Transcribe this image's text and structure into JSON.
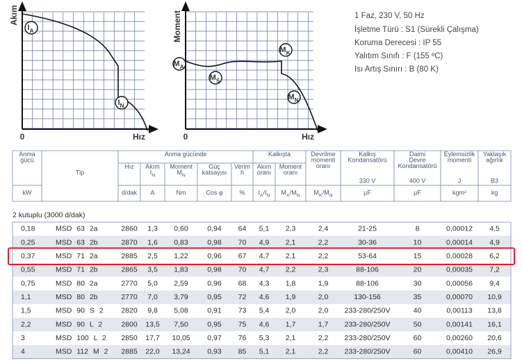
{
  "diagrams": [
    {
      "y_label": "Akım",
      "origin": "0",
      "x_label": "Hız",
      "markers": [
        [
          "I",
          "A"
        ],
        [
          "I",
          "N"
        ]
      ]
    },
    {
      "y_label": "Moment",
      "origin": "0",
      "x_label": "Hız",
      "markers": [
        [
          "M",
          "A"
        ],
        [
          "M",
          "S"
        ],
        [
          "M",
          "K"
        ],
        [
          "M",
          "N"
        ]
      ]
    }
  ],
  "specs": [
    "1 Faz, 230 V, 50 Hz",
    "İşletme Türü : S1 (Sürekli Çalışma)",
    "Koruma Derecesi : IP 55",
    "Yalıtım Sınıfı : F (155 ºC)",
    "Isı Artış Sınırı : B (80 K)"
  ],
  "table": {
    "header": {
      "cells": [
        {
          "lines": [
            [
              "Anma"
            ],
            [
              "gücü"
            ]
          ]
        },
        {
          "lines": [
            [
              "Tip"
            ]
          ]
        },
        {
          "lines": [
            [
              "Anma gücünde"
            ]
          ]
        },
        {
          "lines": [
            [
              "Hız"
            ]
          ]
        },
        {
          "lines": [
            [
              "Akım"
            ],
            [
              "I",
              "N"
            ]
          ]
        },
        {
          "lines": [
            [
              "Moment"
            ],
            [
              "M",
              "N"
            ]
          ]
        },
        {
          "lines": [
            [
              "Güç"
            ],
            [
              "katsayısı"
            ]
          ]
        },
        {
          "lines": [
            [
              "Verim"
            ],
            [
              "h"
            ]
          ]
        },
        {
          "lines": [
            [
              "Kalkışta"
            ]
          ]
        },
        {
          "lines": [
            [
              "Akım"
            ],
            [
              "oranı"
            ]
          ]
        },
        {
          "lines": [
            [
              "Moment"
            ],
            [
              "oranı"
            ]
          ]
        },
        {
          "lines": [
            [
              "Devrilme"
            ],
            [
              "momenti"
            ],
            [
              "oranı"
            ]
          ]
        },
        {
          "lines": [
            [
              "Kalkış"
            ],
            [
              "Kondansatörü"
            ]
          ],
          "note": "330 V"
        },
        {
          "lines": [
            [
              "Daimi"
            ],
            [
              "Devre"
            ],
            [
              "Kondansatörü"
            ]
          ],
          "note": "400 V"
        },
        {
          "lines": [
            [
              "Eylemsizlik"
            ],
            [
              "momenti"
            ]
          ],
          "note": "J"
        },
        {
          "lines": [
            [
              "Yaklaşık"
            ],
            [
              "ağırlık"
            ]
          ],
          "note": "B3"
        }
      ],
      "units": [
        [
          "kW"
        ],
        [
          "d/dak"
        ],
        [
          "A"
        ],
        [
          "Nm"
        ],
        [
          "Cos φ"
        ],
        [
          "%"
        ],
        [
          "I",
          "A",
          "/I",
          "N"
        ],
        [
          "M",
          "A",
          "/M",
          "N"
        ],
        [
          "M",
          "K",
          "/M",
          "N"
        ],
        [
          "µF"
        ],
        [
          "µF"
        ],
        [
          "kgm²"
        ],
        [
          "kg"
        ]
      ]
    },
    "section": "2 kutuplu (3000 d/dak)",
    "rows": [
      [
        "0,18",
        "MSD 63 2a",
        "2860",
        "1,3",
        "0,60",
        "0,94",
        "64",
        "5,1",
        "2,3",
        "2,4",
        "21-25",
        "8",
        "0,00012",
        "4,5"
      ],
      [
        "0,25",
        "MSD 63 2b",
        "2870",
        "1,6",
        "0,83",
        "0,98",
        "70",
        "4,9",
        "2,1",
        "2,2",
        "30-36",
        "10",
        "0,00014",
        "4,9"
      ],
      [
        "0,37",
        "MSD 71 2a",
        "2885",
        "2,5",
        "1,22",
        "0,96",
        "67",
        "4,7",
        "2,1",
        "2,2",
        "53-64",
        "15",
        "0,00028",
        "6,2"
      ],
      [
        "0,55",
        "MSD 71 2b",
        "2865",
        "3,5",
        "1,83",
        "0,98",
        "70",
        "4,7",
        "2,2",
        "2,3",
        "88-106",
        "20",
        "0,00035",
        "7,2"
      ],
      [
        "0,75",
        "MSD 80 2a",
        "2770",
        "5,0",
        "2,59",
        "0,96",
        "68",
        "4,3",
        "1,8",
        "1,9",
        "88-106",
        "30",
        "0,00056",
        "9,4"
      ],
      [
        "1,1",
        "MSD 80 2b",
        "2770",
        "7,0",
        "3,79",
        "0,95",
        "72",
        "4,6",
        "1,9",
        "2,0",
        "130-156",
        "35",
        "0,00070",
        "10,9"
      ],
      [
        "1,5",
        "MSD 90 S 2",
        "2820",
        "9,8",
        "5,08",
        "0,91",
        "73",
        "5,4",
        "2,0",
        "2,0",
        "233-280/250V",
        "40",
        "0,00113",
        "13,8"
      ],
      [
        "2,2",
        "MSD 90 L 2",
        "2800",
        "13,5",
        "7,50",
        "0,95",
        "75",
        "4,6",
        "1,7",
        "1,7",
        "233-280/250V",
        "50",
        "0,00141",
        "16,1"
      ],
      [
        "3",
        "MSD 100 L 2",
        "2850",
        "17,7",
        "10,05",
        "0,97",
        "76",
        "5,3",
        "2,1",
        "2,2",
        "233-280/250V",
        "60",
        "0,00260",
        "20,6"
      ],
      [
        "4",
        "MSD 112 M 2",
        "2885",
        "22,0",
        "13,24",
        "0,93",
        "85",
        "5,1",
        "2,1",
        "2,2",
        "233-280/250V",
        "60",
        "0,00410",
        "26,9"
      ]
    ]
  }
}
